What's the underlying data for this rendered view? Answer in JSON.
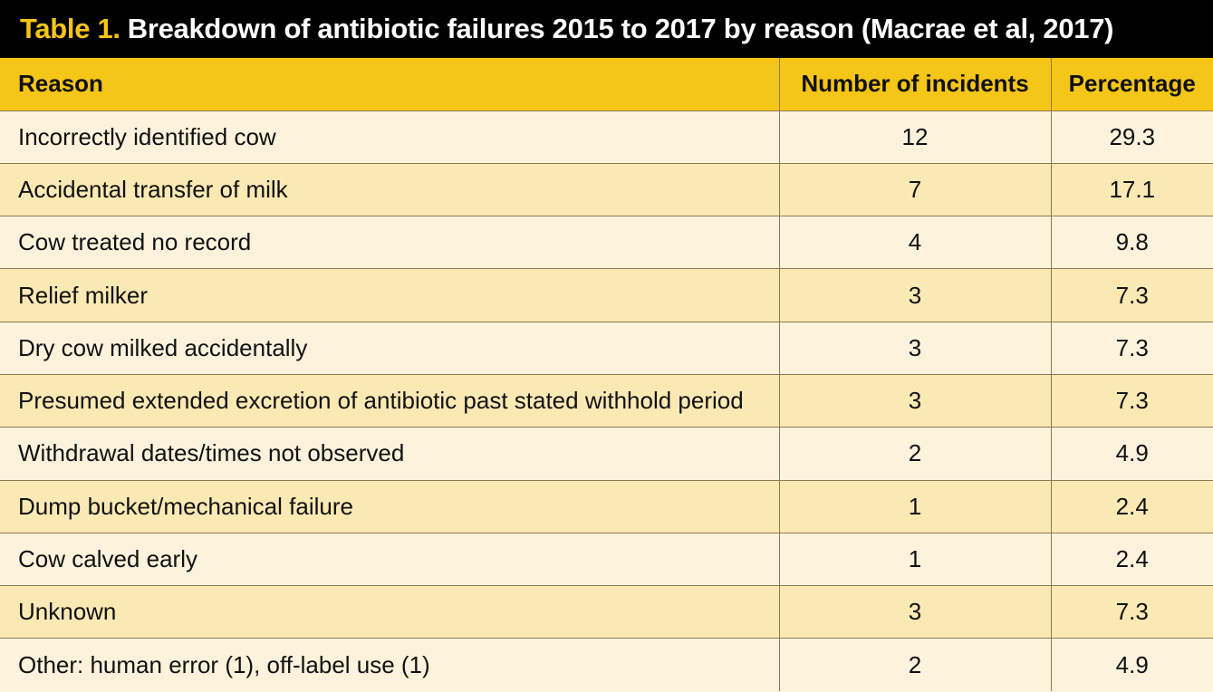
{
  "title": {
    "label": "Table 1.",
    "text": "Breakdown of antibiotic failures 2015 to 2017 by reason (Macrae et al, 2017)"
  },
  "colors": {
    "title_background": "#000000",
    "title_label": "#f5c518",
    "header_background": "#f5c518",
    "row_light": "#fdf3dc",
    "row_shaded": "#fbe9b4"
  },
  "headers": [
    "Reason",
    "Number of incidents",
    "Percentage"
  ],
  "rows": [
    [
      "Incorrectly identified cow",
      "12",
      "29.3"
    ],
    [
      "Accidental transfer of milk",
      "7",
      "17.1"
    ],
    [
      "Cow treated no record",
      "4",
      "9.8"
    ],
    [
      "Relief milker",
      "3",
      "7.3"
    ],
    [
      "Dry cow milked accidentally",
      "3",
      "7.3"
    ],
    [
      "Presumed extended excretion of antibiotic past stated withhold period",
      "3",
      "7.3"
    ],
    [
      "Withdrawal dates/times not observed",
      "2",
      "4.9"
    ],
    [
      "Dump bucket/mechanical failure",
      "1",
      "2.4"
    ],
    [
      "Cow calved early",
      "1",
      "2.4"
    ],
    [
      "Unknown",
      "3",
      "7.3"
    ],
    [
      "Other: human error (1), off-label use (1)",
      "2",
      "4.9"
    ]
  ]
}
